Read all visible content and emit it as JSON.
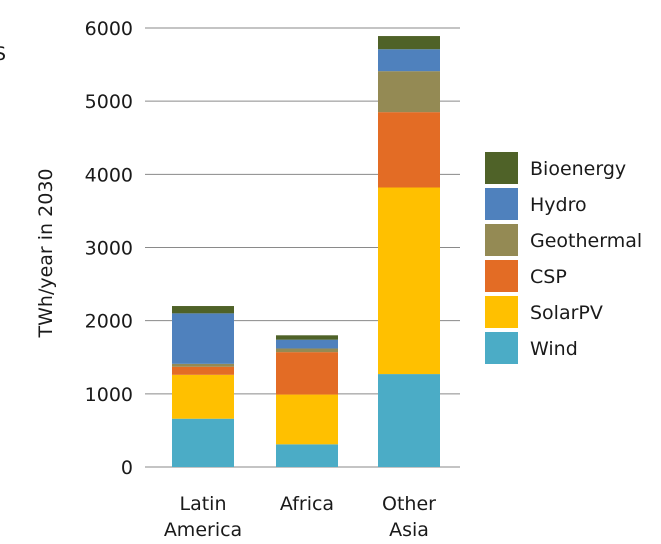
{
  "chart_data": {
    "type": "bar",
    "stacked": true,
    "categories": [
      [
        "Latin",
        "America"
      ],
      [
        "Africa"
      ],
      [
        "Other",
        "Asia"
      ]
    ],
    "series": [
      {
        "name": "Wind",
        "color": "#4bacc6",
        "values": [
          660,
          310,
          1270
        ]
      },
      {
        "name": "SolarPV",
        "color": "#ffc000",
        "values": [
          600,
          680,
          2550
        ]
      },
      {
        "name": "CSP",
        "color": "#e36c25",
        "values": [
          110,
          580,
          1030
        ]
      },
      {
        "name": "Geothermal",
        "color": "#948a54",
        "values": [
          40,
          50,
          560
        ]
      },
      {
        "name": "Hydro",
        "color": "#4f81bd",
        "values": [
          690,
          120,
          300
        ]
      },
      {
        "name": "Bioenergy",
        "color": "#4f6228",
        "values": [
          100,
          60,
          180
        ]
      }
    ],
    "legend_order": [
      "Bioenergy",
      "Hydro",
      "Geothermal",
      "CSP",
      "SolarPV",
      "Wind"
    ],
    "yticks": [
      0,
      1000,
      2000,
      3000,
      4000,
      5000,
      6000
    ],
    "ylim": [
      0,
      6000
    ],
    "ylabel": "TWh/year in 2030",
    "xlabel": "",
    "title": "",
    "grid": true,
    "legend_position": "right"
  },
  "cut_glyph": "S"
}
